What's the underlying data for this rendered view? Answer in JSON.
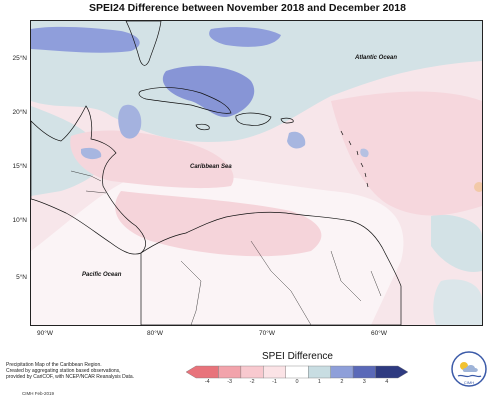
{
  "title": "SPEI24 Difference between November 2018 and December 2018",
  "axes": {
    "y_ticks": [
      "25°N",
      "20°N",
      "15°N",
      "10°N",
      "5°N"
    ],
    "x_ticks": [
      "90°W",
      "80°W",
      "70°W",
      "60°W"
    ]
  },
  "map_labels": {
    "atlantic": "Atlantic Ocean",
    "caribbean": "Caribbean Sea",
    "pacific": "Pacific Ocean"
  },
  "legend": {
    "title": "SPEI Difference",
    "tick_labels": [
      "-4",
      "-3",
      "-2",
      "-1",
      "0",
      "1",
      "2",
      "3",
      "4"
    ],
    "colors": [
      "#e8737b",
      "#f2a3ab",
      "#f8c9cf",
      "#fbe3e6",
      "#ffffff",
      "#c8dde2",
      "#8e9fd9",
      "#5a69b8",
      "#2e3a80"
    ]
  },
  "footnote": {
    "line1": "Precipitation Map of the Caribbean Region.",
    "line2": "Created by aggregating station based observations,",
    "line3": "provided by CariCOF, with NCEP/NCAR Reanalysis Data.",
    "credit": "CIMH Feb-2019"
  },
  "logo": {
    "text": "CIMH"
  },
  "colors": {
    "land_dry": "#f9dde1",
    "ocean_neutral": "#f4e4e8",
    "wet_light": "#cfe0e5",
    "wet_mid": "#8f9edb",
    "coast": "#111111"
  }
}
